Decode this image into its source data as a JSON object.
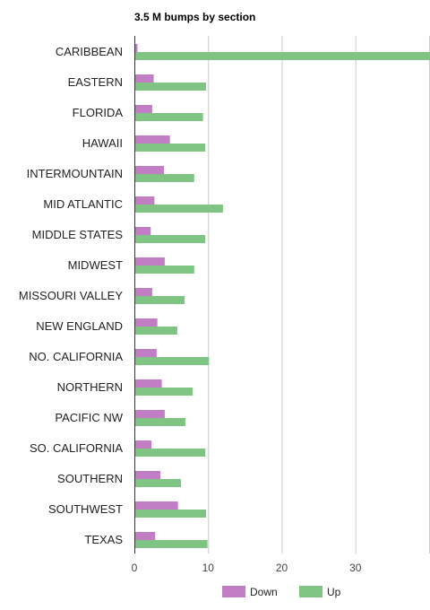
{
  "chart_data": {
    "type": "bar",
    "orientation": "horizontal",
    "title": "3.5 M bumps by section",
    "xlabel": "",
    "ylabel": "",
    "categories": [
      "CARIBBEAN",
      "EASTERN",
      "FLORIDA",
      "HAWAII",
      "INTERMOUNTAIN",
      "MID ATLANTIC",
      "MIDDLE STATES",
      "MIDWEST",
      "MISSOURI VALLEY",
      "NEW ENGLAND",
      "NO. CALIFORNIA",
      "NORTHERN",
      "PACIFIC NW",
      "SO. CALIFORNIA",
      "SOUTHERN",
      "SOUTHWEST",
      "TEXAS"
    ],
    "series": [
      {
        "name": "Down",
        "color": "#c27ec4",
        "values": [
          0.3,
          2.5,
          2.3,
          4.7,
          3.9,
          2.6,
          2.1,
          4.0,
          2.3,
          3.0,
          2.9,
          3.6,
          4.0,
          2.2,
          3.4,
          5.8,
          2.7
        ]
      },
      {
        "name": "Up",
        "color": "#80c484",
        "values": [
          40.0,
          9.6,
          9.2,
          9.5,
          8.0,
          11.9,
          9.5,
          8.0,
          6.7,
          5.7,
          10.0,
          7.8,
          6.8,
          9.5,
          6.2,
          9.6,
          9.8
        ]
      }
    ],
    "xlim": [
      0,
      40
    ],
    "xticks": [
      0,
      10,
      20,
      30
    ],
    "grid": true,
    "legend_position": "bottom"
  }
}
